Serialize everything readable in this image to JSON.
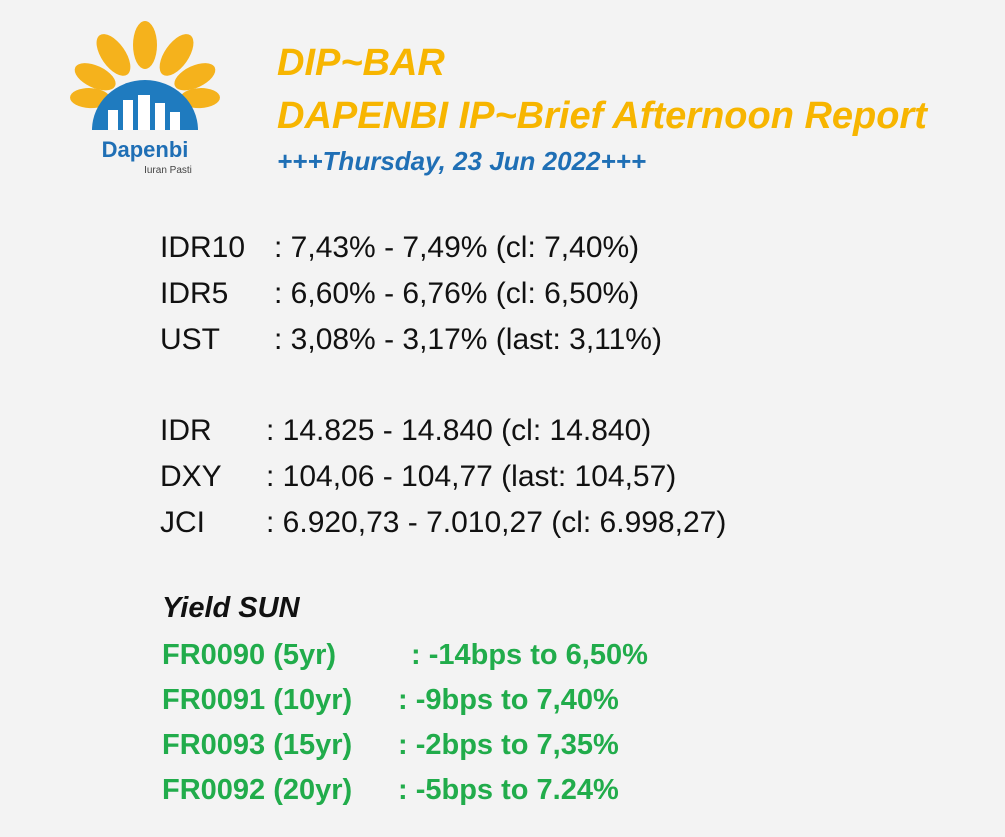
{
  "logo": {
    "name": "Dapenbi",
    "tagline": "Iuran Pasti"
  },
  "header": {
    "title": "DIP~BAR",
    "subtitle": "DAPENBI IP~Brief Afternoon Report",
    "date": "+++Thursday, 23 Jun 2022+++"
  },
  "yields": [
    {
      "label": "IDR10",
      "value": ": 7,43% - 7,49% (cl: 7,40%)"
    },
    {
      "label": "IDR5",
      "value": ": 6,60% - 6,76% (cl: 6,50%)"
    },
    {
      "label": "UST",
      "value": ": 3,08% - 3,17% (last: 3,11%)"
    }
  ],
  "markets": [
    {
      "label": "IDR",
      "value": ": 14.825 - 14.840 (cl: 14.840)"
    },
    {
      "label": "DXY",
      "value": ": 104,06 - 104,77 (last: 104,57)"
    },
    {
      "label": "JCI",
      "value": ": 6.920,73 - 7.010,27 (cl: 6.998,27)"
    }
  ],
  "sun": {
    "title": "Yield SUN",
    "rows": [
      {
        "label": "FR0090 (5yr)",
        "value": ": -14bps to 6,50%"
      },
      {
        "label": "FR0091 (10yr)",
        "value": ": -9bps to 7,40%"
      },
      {
        "label": "FR0093 (15yr)",
        "value": ": -2bps to 7,35%"
      },
      {
        "label": "FR0092 (20yr)",
        "value": ": -5bps to 7.24%"
      }
    ]
  }
}
